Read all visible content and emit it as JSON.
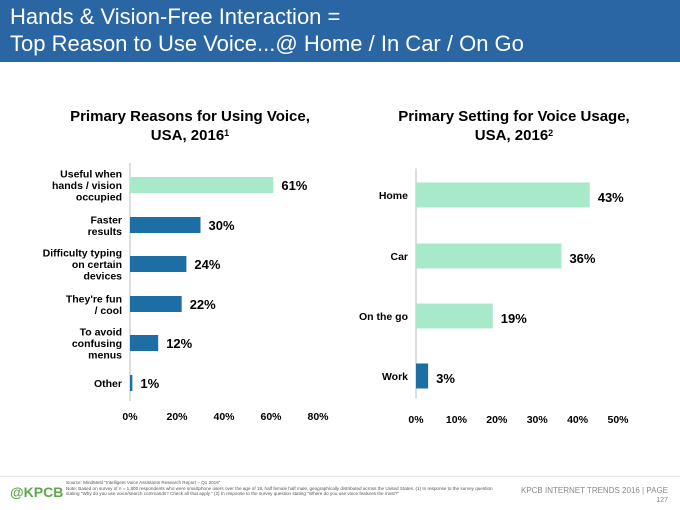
{
  "header": {
    "line1": "Hands & Vision-Free Interaction =",
    "line2": "Top Reason to Use Voice...@ Home / In Car / On Go"
  },
  "colors": {
    "header_bg": "#2a66a3",
    "highlight_bar": "#a8e9c9",
    "primary_bar": "#1c6ea4",
    "logo": "#5fa84a"
  },
  "chart_data": [
    {
      "type": "bar",
      "orientation": "horizontal",
      "title": "Primary Reasons for Using Voice,",
      "title_line2": "USA, 2016",
      "title_sup": "1",
      "categories": [
        [
          "Useful when",
          "hands / vision",
          "occupied"
        ],
        [
          "Faster",
          "results"
        ],
        [
          "Difficulty typing",
          "on certain",
          "devices"
        ],
        [
          "They're fun",
          "/ cool"
        ],
        [
          "To avoid",
          "confusing",
          "menus"
        ],
        [
          "Other"
        ]
      ],
      "values": [
        61,
        30,
        24,
        22,
        12,
        1
      ],
      "value_labels": [
        "61%",
        "30%",
        "24%",
        "22%",
        "12%",
        "1%"
      ],
      "highlight_index": 0,
      "xlim": [
        0,
        80
      ],
      "ticks": [
        "0%",
        "20%",
        "40%",
        "60%",
        "80%"
      ],
      "grid": false
    },
    {
      "type": "bar",
      "orientation": "horizontal",
      "title": "Primary Setting for Voice Usage,",
      "title_line2": "USA, 2016",
      "title_sup": "2",
      "categories": [
        [
          "Home"
        ],
        [
          "Car"
        ],
        [
          "On the go"
        ],
        [
          "Work"
        ]
      ],
      "values": [
        43,
        36,
        19,
        3
      ],
      "value_labels": [
        "43%",
        "36%",
        "19%",
        "3%"
      ],
      "highlight_indices": [
        0,
        1,
        2
      ],
      "xlim": [
        0,
        50
      ],
      "ticks": [
        "0%",
        "10%",
        "20%",
        "30%",
        "40%",
        "50%"
      ],
      "grid": false
    }
  ],
  "footer": {
    "logo": "@KPCB",
    "source": "Source: MindMeld \"Intelligent Voice Assistants Research Report – Q1 2016\"",
    "note": "Note: Based on survey of n = 1,800 respondents who were smartphone users over the age of 18, half female half male, geographically distributed across the United States. (1) In response to the survey question stating \"Why do you use voice/search commands? Check all that apply.\" (2) In response to the survey question stating \"Where do you use voice features the most?\"",
    "brand": "KPCB INTERNET TRENDS 2016  |  PAGE",
    "page": "127"
  }
}
